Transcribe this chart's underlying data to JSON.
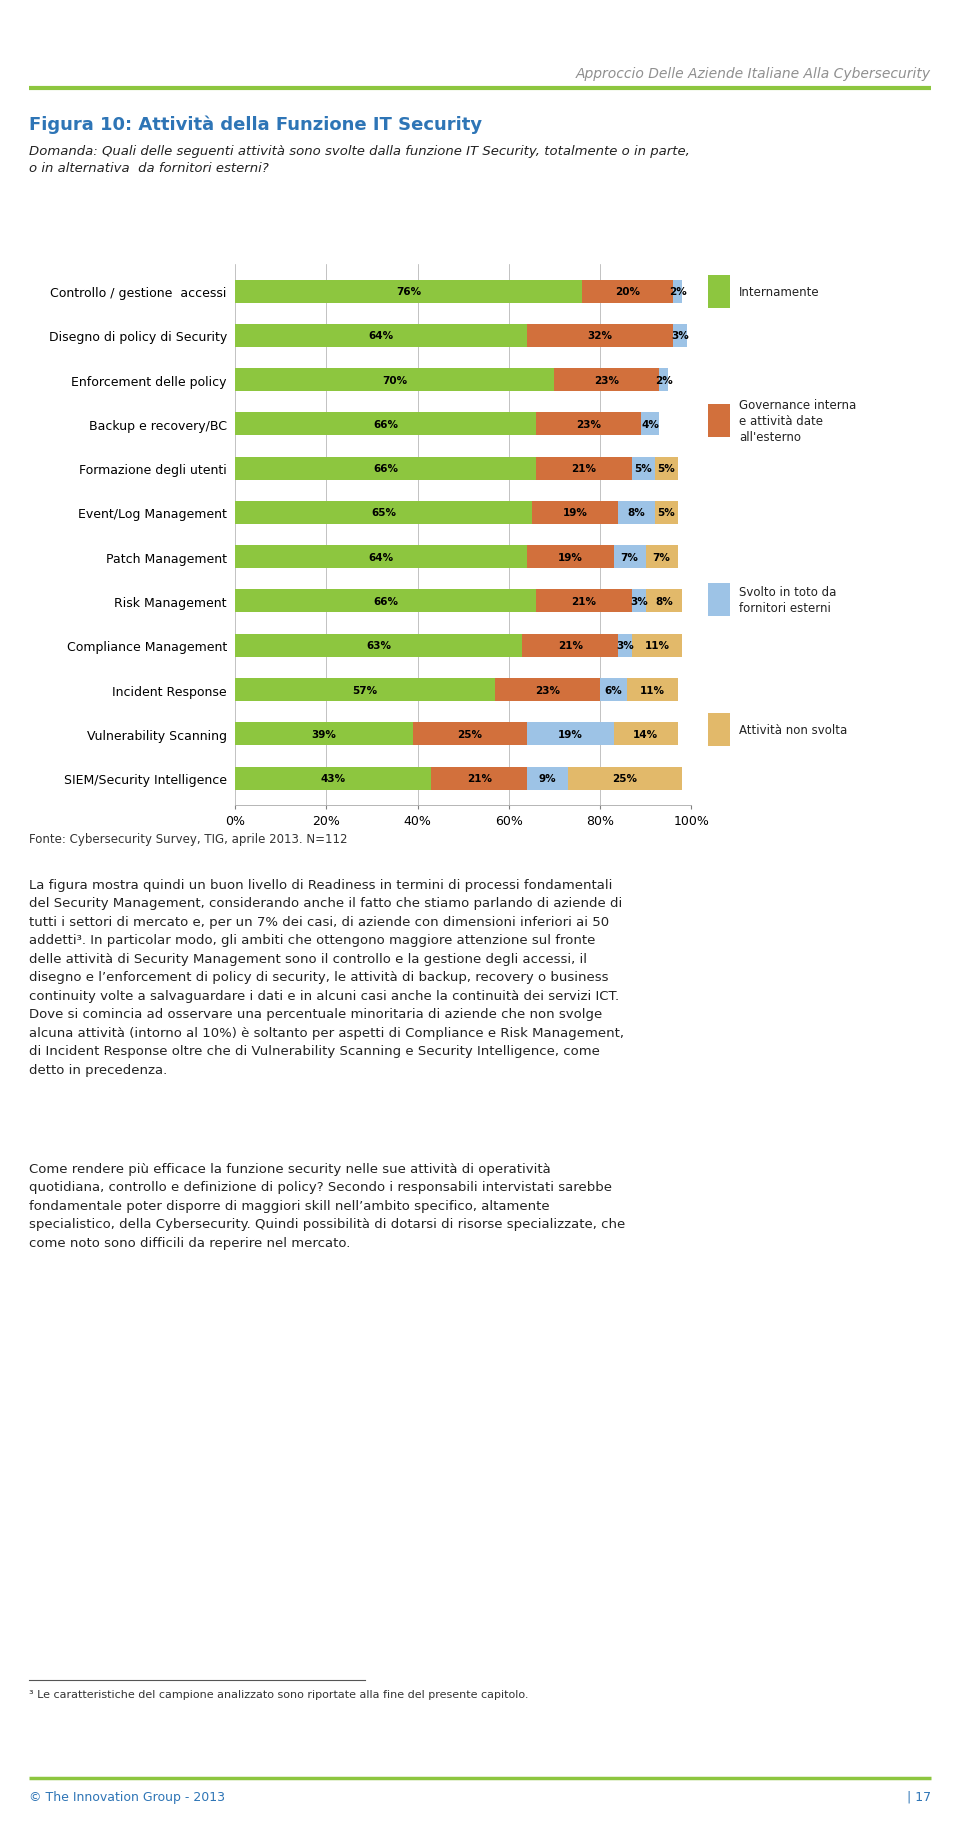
{
  "categories": [
    "Controllo / gestione  accessi",
    "Disegno di policy di Security",
    "Enforcement delle policy",
    "Backup e recovery/BC",
    "Formazione degli utenti",
    "Event/Log Management",
    "Patch Management",
    "Risk Management",
    "Compliance Management",
    "Incident Response",
    "Vulnerability Scanning",
    "SIEM/Security Intelligence"
  ],
  "series": {
    "Internamente": [
      76,
      64,
      70,
      66,
      66,
      65,
      64,
      66,
      63,
      57,
      39,
      43
    ],
    "Governance interna\ne attività date\nall'esterno": [
      20,
      32,
      23,
      23,
      21,
      19,
      19,
      21,
      21,
      23,
      25,
      21
    ],
    "Svolto in toto da\nfornitori esterni": [
      2,
      3,
      2,
      4,
      5,
      8,
      7,
      3,
      3,
      6,
      19,
      9
    ],
    "Attività non svolta": [
      0,
      0,
      0,
      0,
      5,
      5,
      7,
      8,
      11,
      11,
      14,
      25
    ]
  },
  "colors": {
    "Internamente": "#8DC63F",
    "Governance interna\ne attività date\nall'esterno": "#D2703C",
    "Svolto in toto da\nfornitori esterni": "#9DC3E6",
    "Attività non svolta": "#E2B96A"
  },
  "header_title": "Approccio Delle Aziende Italiane Alla Cybersecurity",
  "figure_title": "Figura 10: Attività della Funzione IT Security",
  "question_text": "Domanda: Quali delle seguenti attività sono svolte dalla funzione IT Security, totalmente o in parte,\no in alternativa  da fornitori esterni?",
  "footer_text": "Fonte: Cybersecurity Survey, TIG, aprile 2013. N=112",
  "footer_org": "© The Innovation Group - 2013",
  "footer_page": "| 17",
  "body_text1": "La figura mostra quindi un buon livello di {italic}Readiness{/italic} in termini di processi fondamentali del Security Management, considerando anche il fatto che stiamo parlando di aziende di tutti i settori di mercato e, per un 7% dei casi, di aziende con dimensioni inferiori ai 50 addetti³. In particolar modo, gli ambiti che ottengono maggiore attenzione sul fronte delle attività di Security Management sono il controllo e la gestione degli accessi, il disegno e l’enforcement di policy di security, le attività di backup, recovery o business continuity volte a salvaguardare i dati e in alcuni casi anche la continuità dei servizi ICT. Dove si comincia ad osservare una percentuale minoritaria di aziende che non svolge alcuna attività (intorno al 10%) è soltanto per aspetti di Compliance e Risk Management, di Incident Response oltre che di Vulnerability Scanning e Security Intelligence, come detto in precedenza.",
  "body_text2": "Come rendere più efficace la funzione security nelle sue attività di operatività quotidiana, controllo e definizione di policy? Secondo i responsabili intervistati sarebbe fondamentale poter disporre di maggiori skill nell’ambito specifico, altamente specialistico, della Cybersecurity. Quindi possibilità di dotarsi di risorse specializzate, che come noto sono difficili da reperire nel mercato.",
  "footnote": "³ Le caratteristiche del campione analizzato sono riportate alla fine del presente capitolo.",
  "xlim": [
    0,
    100
  ],
  "xticks": [
    0,
    20,
    40,
    60,
    80,
    100
  ],
  "xtick_labels": [
    "0%",
    "20%",
    "40%",
    "60%",
    "80%",
    "100%"
  ]
}
